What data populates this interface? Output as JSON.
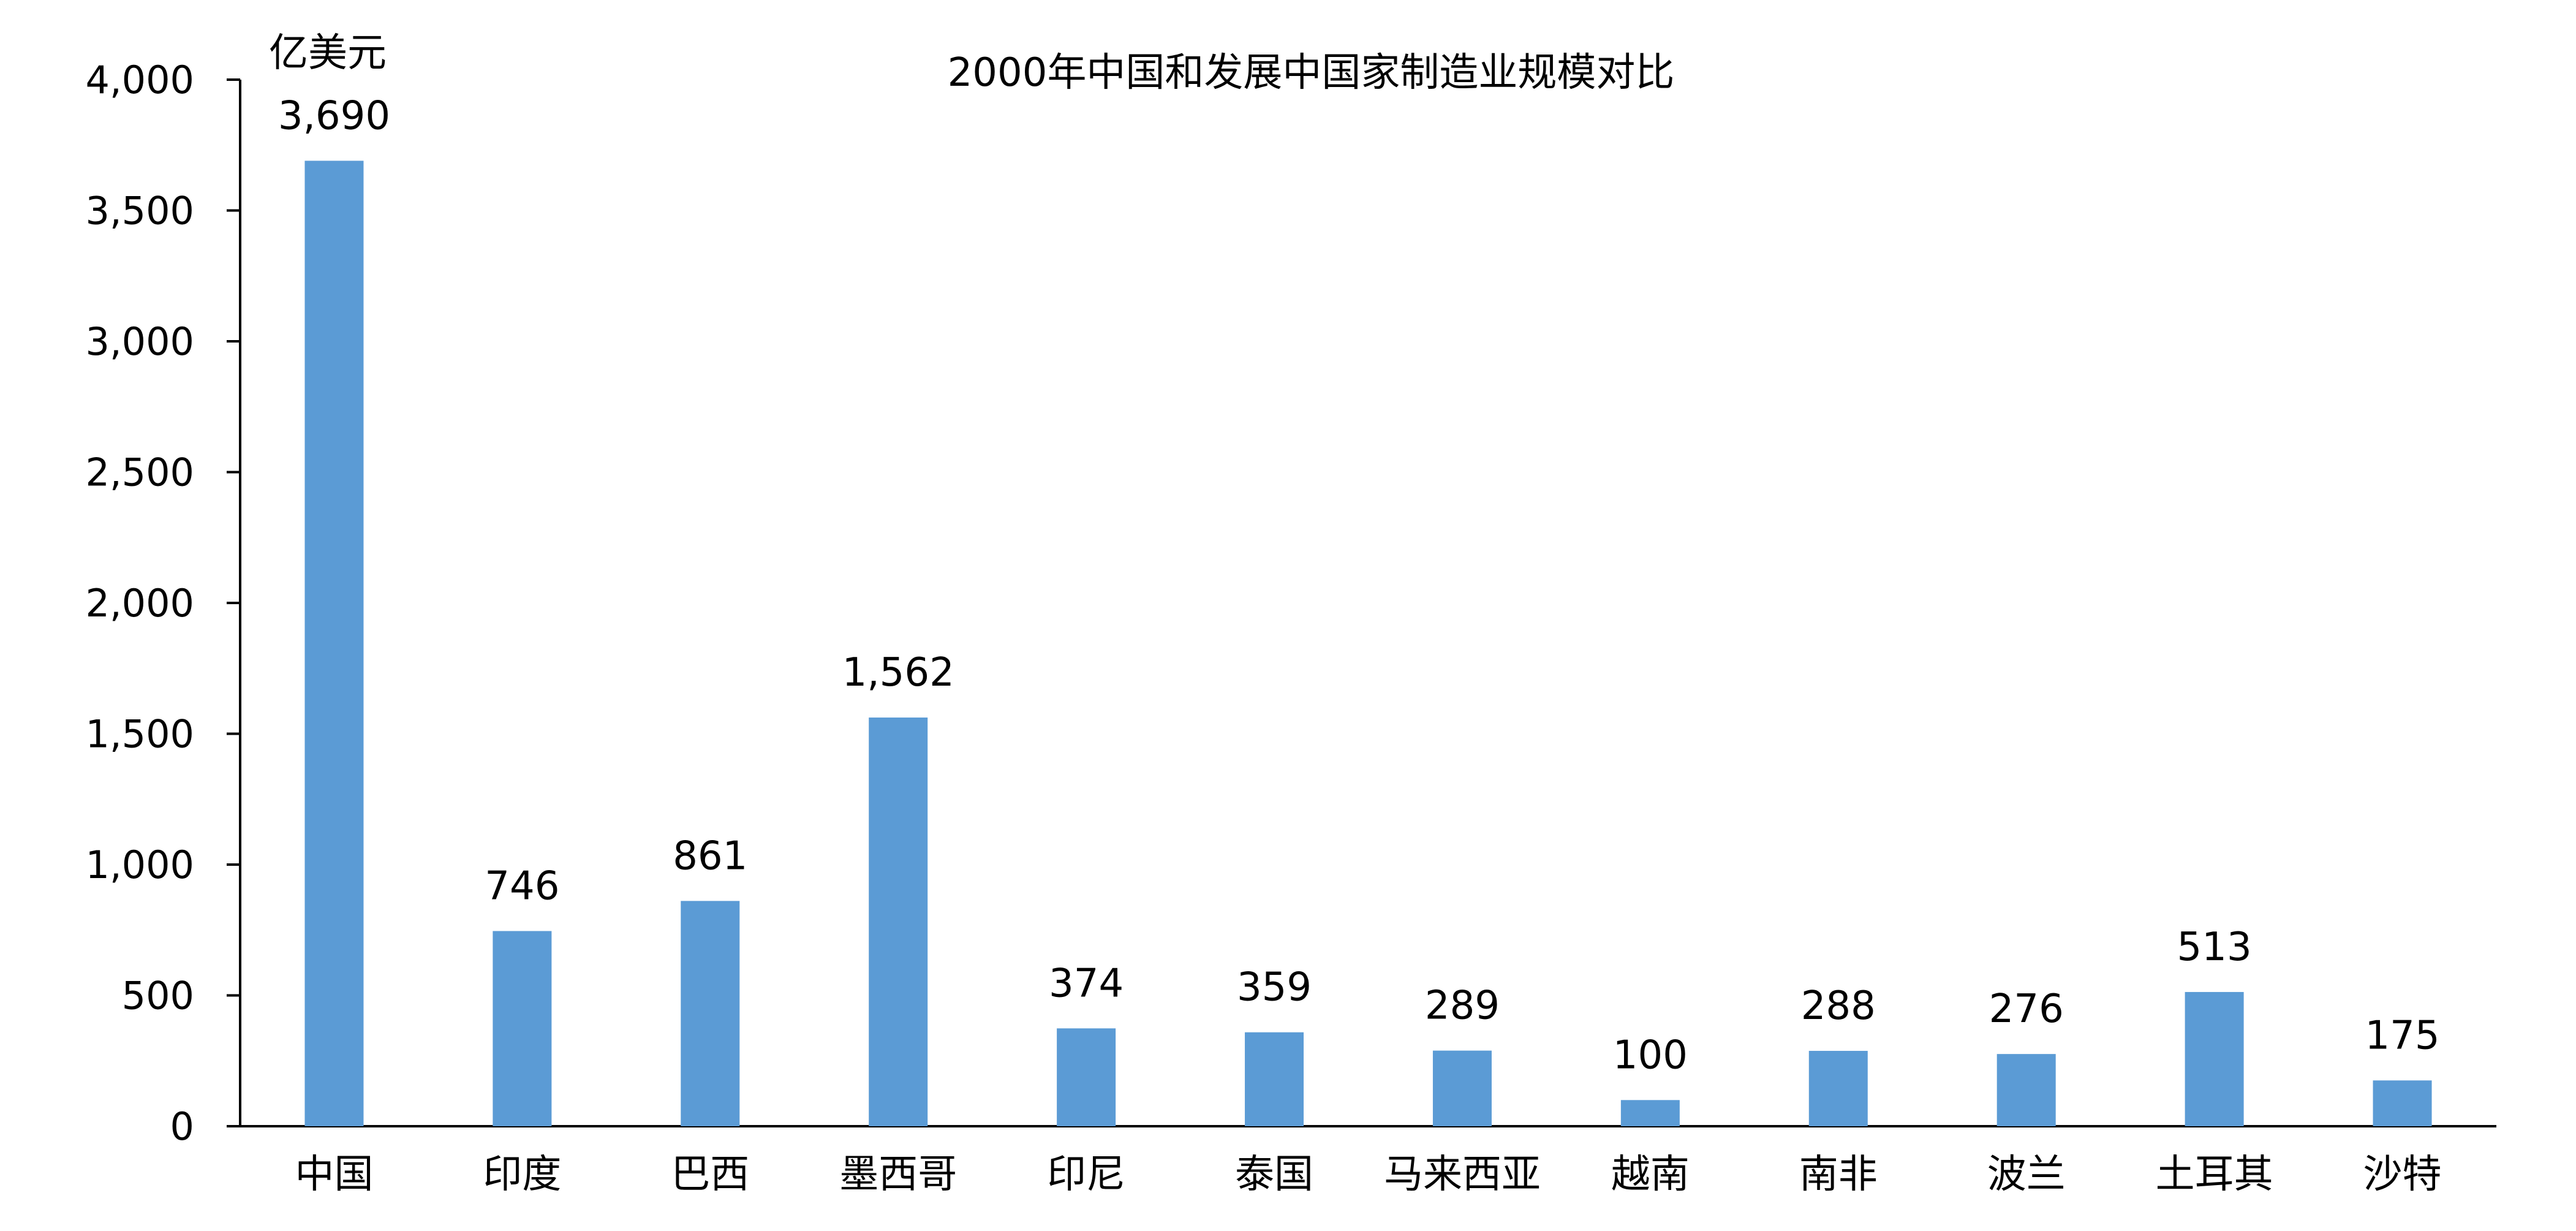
{
  "chart_data": {
    "type": "bar",
    "title": "2000年中国和发展中国家制造业规模对比",
    "ylabel": "亿美元",
    "xlabel": "",
    "categories": [
      "中国",
      "印度",
      "巴西",
      "墨西哥",
      "印尼",
      "泰国",
      "马来西亚",
      "越南",
      "南非",
      "波兰",
      "土耳其",
      "沙特"
    ],
    "values": [
      3690,
      746,
      861,
      1562,
      374,
      359,
      289,
      100,
      288,
      276,
      513,
      175
    ],
    "value_labels": [
      "3,690",
      "746",
      "861",
      "1,562",
      "374",
      "359",
      "289",
      "100",
      "288",
      "276",
      "513",
      "175"
    ],
    "ylim": [
      0,
      4000
    ],
    "yticks": [
      0,
      500,
      1000,
      1500,
      2000,
      2500,
      3000,
      3500,
      4000
    ],
    "ytick_labels": [
      "0",
      "500",
      "1,000",
      "1,500",
      "2,000",
      "2,500",
      "3,000",
      "3,500",
      "4,000"
    ],
    "grid": false,
    "legend": "none",
    "colors": {
      "bar": "#5b9bd5",
      "axis": "#000000",
      "text": "#000000",
      "background": "#ffffff"
    }
  }
}
